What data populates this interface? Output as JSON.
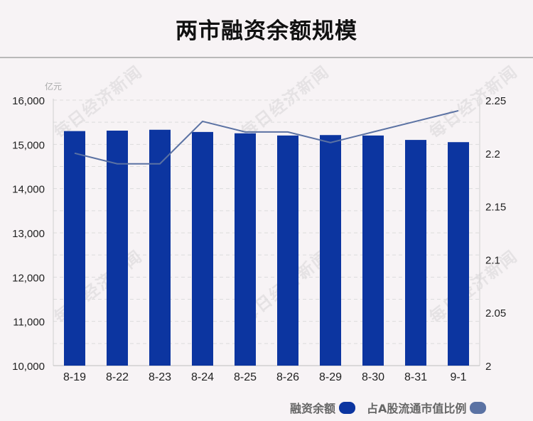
{
  "title": "两市融资余额规模",
  "watermark": "每日经济新闻",
  "chart_data": {
    "type": "bar",
    "categories": [
      "8-19",
      "8-22",
      "8-23",
      "8-24",
      "8-25",
      "8-26",
      "8-29",
      "8-30",
      "8-31",
      "9-1"
    ],
    "left_axis": {
      "unit": "亿元",
      "ylim": [
        10000,
        16000
      ],
      "ticks": [
        "10,000",
        "11,000",
        "12,000",
        "13,000",
        "14,000",
        "15,000",
        "16,000"
      ]
    },
    "right_axis": {
      "ylim": [
        2,
        2.25
      ],
      "ticks": [
        "2",
        "2.05",
        "2.1",
        "2.15",
        "2.2",
        "2.25"
      ]
    },
    "series": [
      {
        "name": "融资余额",
        "type": "bar",
        "axis": "left",
        "color": "#0c35a0",
        "values": [
          15300,
          15310,
          15330,
          15280,
          15250,
          15200,
          15210,
          15200,
          15100,
          15050
        ]
      },
      {
        "name": "占A股流通市值比例",
        "type": "line",
        "axis": "right",
        "color": "#5b72a3",
        "values": [
          2.2,
          2.19,
          2.19,
          2.23,
          2.22,
          2.22,
          2.21,
          2.22,
          2.23,
          2.24
        ]
      }
    ],
    "grid": true,
    "legend_position": "bottom-right"
  }
}
